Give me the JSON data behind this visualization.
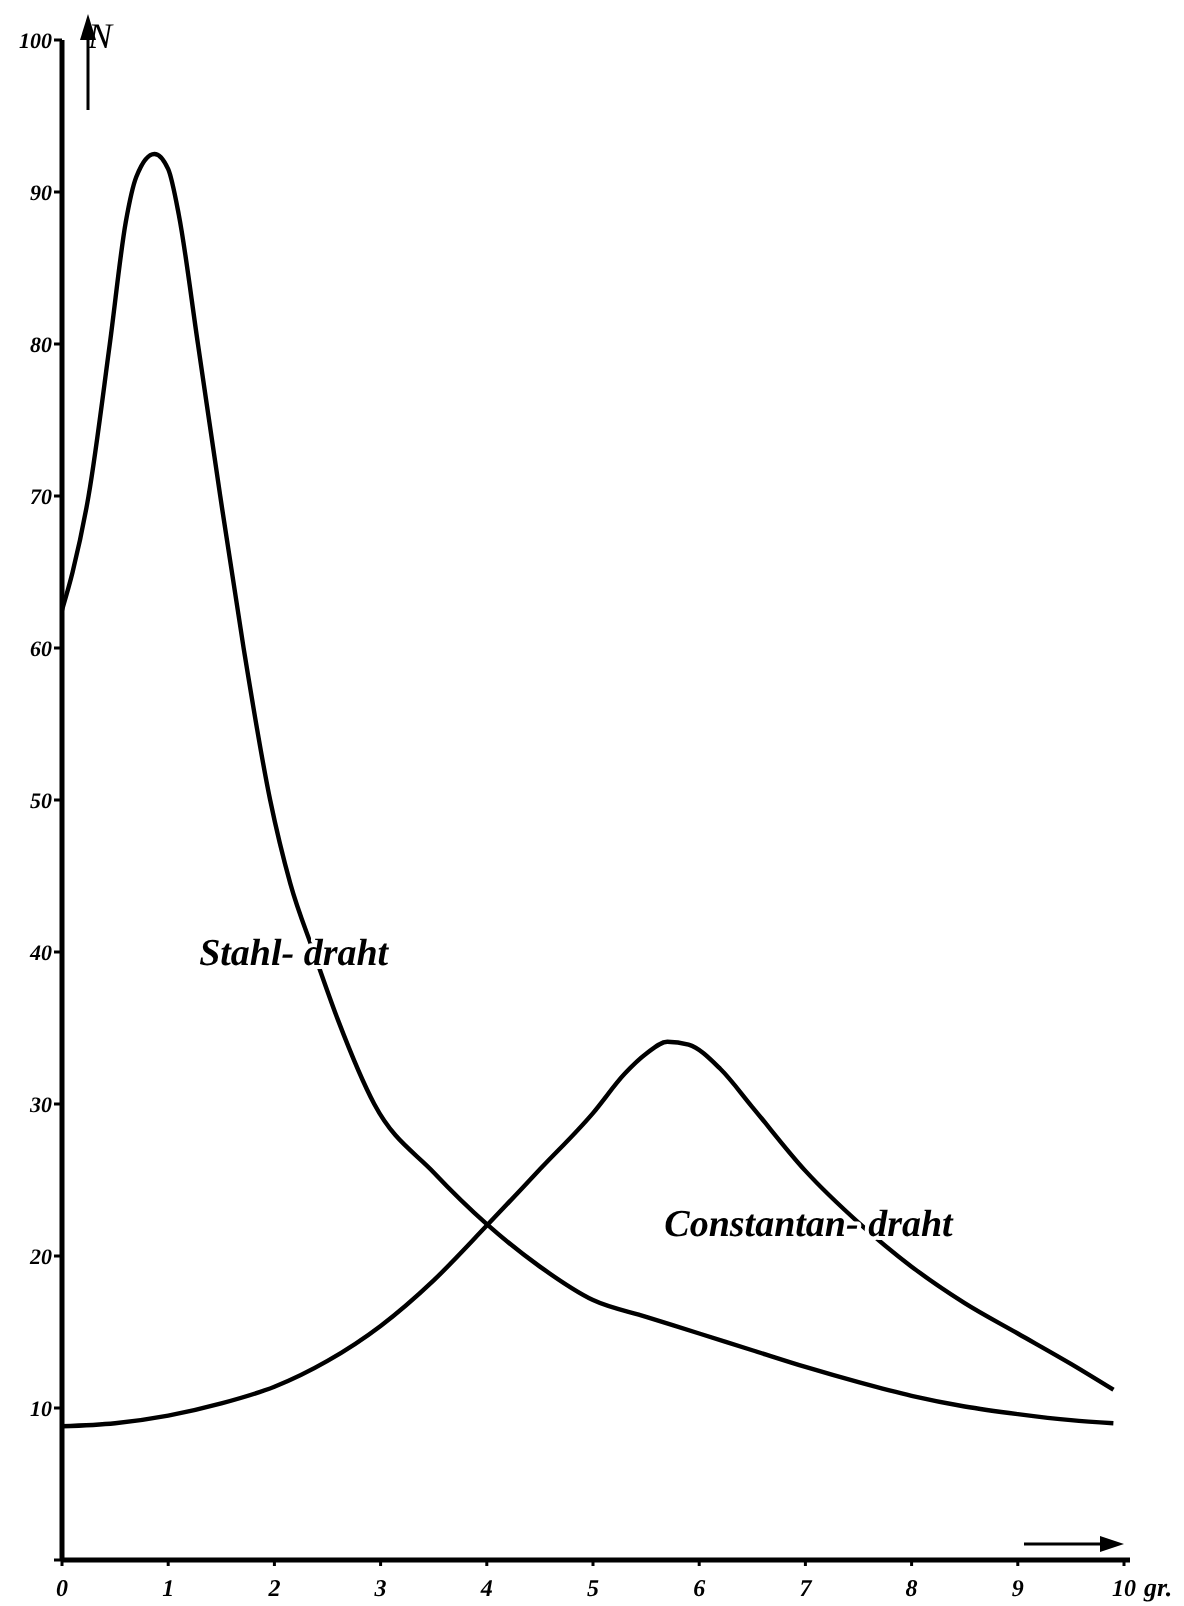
{
  "chart_data": {
    "type": "line",
    "xlabel": "gr.",
    "ylabel": "N",
    "xlim": [
      0,
      10
    ],
    "ylim": [
      0,
      100
    ],
    "xticks": [
      0,
      1,
      2,
      3,
      4,
      5,
      6,
      7,
      8,
      9,
      10
    ],
    "yticks": [
      {
        "value": 0,
        "label": null
      },
      10,
      20,
      30,
      40,
      50,
      60,
      70,
      80,
      90,
      100
    ],
    "grid": false,
    "marker": "none",
    "line_style": "solid",
    "series": [
      {
        "name": "Stahl- draht",
        "color": "#000000",
        "x": [
          0,
          0.1,
          0.25,
          0.45,
          0.6,
          0.7,
          0.87,
          1.0,
          1.1,
          1.28,
          1.49,
          1.71,
          1.96,
          2.15,
          2.37,
          2.6,
          2.94,
          3.5,
          4.0,
          4.5,
          5.0,
          5.5,
          6.0,
          6.5,
          7.0,
          7.5,
          8.0,
          8.5,
          9.0,
          9.5,
          9.9
        ],
        "values": [
          62.5,
          65,
          70,
          80,
          88,
          91,
          92.5,
          91.5,
          88.5,
          80,
          70,
          60,
          50,
          44.5,
          40,
          35.5,
          30,
          25.5,
          22.1,
          19.3,
          17.1,
          16.0,
          14.9,
          13.8,
          12.7,
          11.7,
          10.8,
          10.1,
          9.6,
          9.2,
          9.0
        ]
      },
      {
        "name": "Constantan- draht",
        "color": "#000000",
        "x": [
          0,
          0.5,
          1,
          1.5,
          2,
          2.5,
          3,
          3.5,
          4,
          4.5,
          5,
          5.3,
          5.5,
          5.7,
          5.9,
          6.2,
          6.5,
          7,
          7.5,
          8,
          8.5,
          9,
          9.5,
          9.9
        ],
        "values": [
          8.8,
          9.0,
          9.5,
          10.3,
          11.4,
          13.1,
          15.4,
          18.4,
          22.0,
          25.7,
          29.4,
          32,
          33.3,
          34.1,
          33.9,
          32.3,
          29.8,
          25.6,
          22.2,
          19.3,
          16.9,
          14.9,
          12.9,
          11.2
        ]
      }
    ]
  }
}
